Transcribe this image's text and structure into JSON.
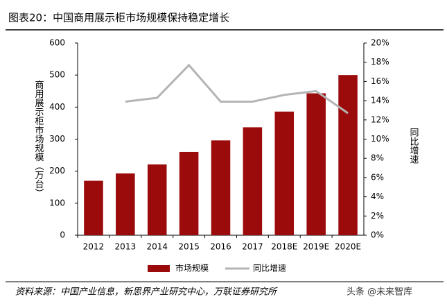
{
  "chart_data": {
    "type": "bar",
    "title": "图表20：中国商用展示柜市场规模保持稳定增长",
    "categories": [
      "2012",
      "2013",
      "2014",
      "2015",
      "2016",
      "2017",
      "2018E",
      "2019E",
      "2020E"
    ],
    "series": [
      {
        "name": "市场规模",
        "color": "#9c0b0b",
        "values": [
          170,
          193,
          221,
          260,
          296,
          337,
          386,
          443,
          500
        ]
      },
      {
        "name": "同比增速",
        "color": "#b4b4b4",
        "type": "line",
        "axis": "y2",
        "values": [
          null,
          13.9,
          14.3,
          17.7,
          13.9,
          13.9,
          14.6,
          15.0,
          12.7
        ]
      }
    ],
    "ylabel": "商用展示柜市场规模（万台）",
    "y2label": "同比增速",
    "ylim": [
      0,
      600
    ],
    "yticks": [
      0,
      100,
      200,
      300,
      400,
      500,
      600
    ],
    "y2lim": [
      0,
      20
    ],
    "y2ticks": [
      {
        "value": 0,
        "label": "0%"
      },
      {
        "value": 2,
        "label": "2%"
      },
      {
        "value": 4,
        "label": "4%"
      },
      {
        "value": 6,
        "label": "6%"
      },
      {
        "value": 8,
        "label": "8%"
      },
      {
        "value": 10,
        "label": "10%"
      },
      {
        "value": 12,
        "label": "12%"
      },
      {
        "value": 14,
        "label": "14%"
      },
      {
        "value": 16,
        "label": "16%"
      },
      {
        "value": 18,
        "label": "18%"
      },
      {
        "value": 20,
        "label": "20%"
      }
    ],
    "legend": "bottom"
  },
  "source": "资料来源：中国产业信息，新思界产业研究中心，万联证券研究所",
  "watermark": "头条 @未来智库"
}
